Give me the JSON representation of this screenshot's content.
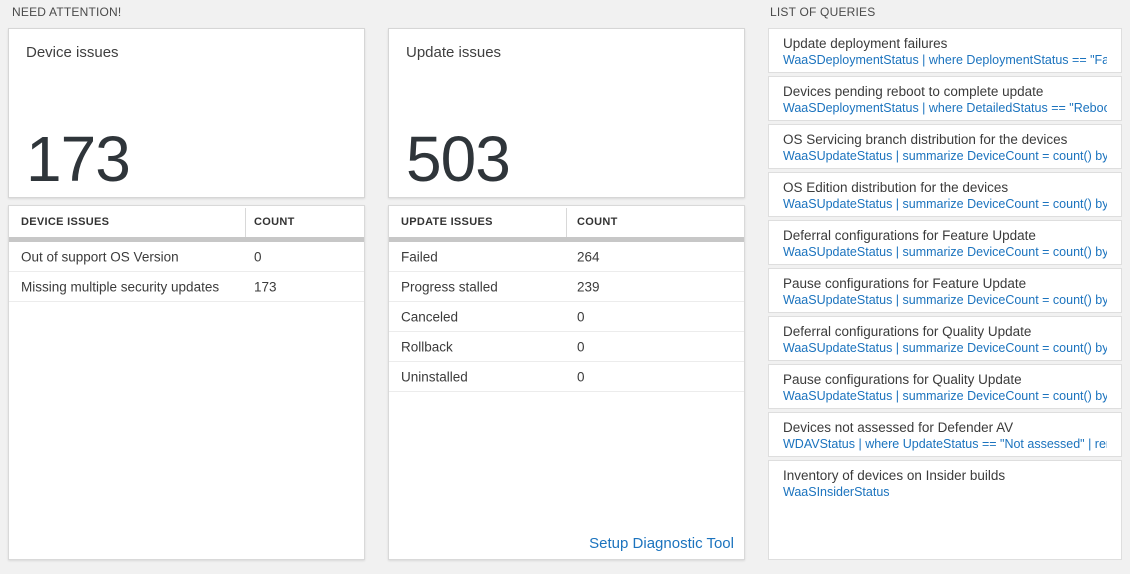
{
  "section_titles": {
    "need_attention": "NEED ATTENTION!",
    "list_of_queries": "LIST OF QUERIES"
  },
  "colors": {
    "link_blue": "#1b73be",
    "panel_background": "#ffffff",
    "page_background": "#f1f1f1"
  },
  "device_card": {
    "title": "Device issues",
    "value": "173"
  },
  "device_table": {
    "col_issue": "DEVICE ISSUES",
    "col_count": "COUNT",
    "rows": [
      {
        "label": "Out of support OS Version",
        "count": "0"
      },
      {
        "label": "Missing multiple security updates",
        "count": "173"
      }
    ]
  },
  "update_card": {
    "title": "Update issues",
    "value": "503"
  },
  "update_table": {
    "col_issue": "UPDATE ISSUES",
    "col_count": "COUNT",
    "rows": [
      {
        "label": "Failed",
        "count": "264"
      },
      {
        "label": "Progress stalled",
        "count": "239"
      },
      {
        "label": "Canceled",
        "count": "0"
      },
      {
        "label": "Rollback",
        "count": "0"
      },
      {
        "label": "Uninstalled",
        "count": "0"
      }
    ],
    "footer_link": "Setup Diagnostic Tool"
  },
  "queries": [
    {
      "title": "Update deployment failures",
      "query": "WaaSDeploymentStatus | where DeploymentStatus == \"Failed\" |..."
    },
    {
      "title": "Devices pending reboot to complete update",
      "query": "WaaSDeploymentStatus | where DetailedStatus == \"Reboot pend..."
    },
    {
      "title": "OS Servicing branch distribution for the devices",
      "query": "WaaSUpdateStatus | summarize DeviceCount = count() by OSSer..."
    },
    {
      "title": "OS Edition distribution for the devices",
      "query": "WaaSUpdateStatus | summarize DeviceCount = count() by OSEdit..."
    },
    {
      "title": "Deferral configurations for Feature Update",
      "query": "WaaSUpdateStatus | summarize DeviceCount = count() by Featur..."
    },
    {
      "title": "Pause configurations for Feature Update",
      "query": "WaaSUpdateStatus | summarize DeviceCount = count() by Featur..."
    },
    {
      "title": "Deferral configurations for Quality Update",
      "query": "WaaSUpdateStatus | summarize DeviceCount = count() by Qualit..."
    },
    {
      "title": "Pause configurations for Quality Update",
      "query": "WaaSUpdateStatus | summarize DeviceCount = count() by Qualit..."
    },
    {
      "title": "Devices not assessed for Defender AV",
      "query": "WDAVStatus | where UpdateStatus == \"Not assessed\" | render ta..."
    },
    {
      "title": "Inventory of devices on Insider builds",
      "query": "WaaSInsiderStatus"
    }
  ]
}
